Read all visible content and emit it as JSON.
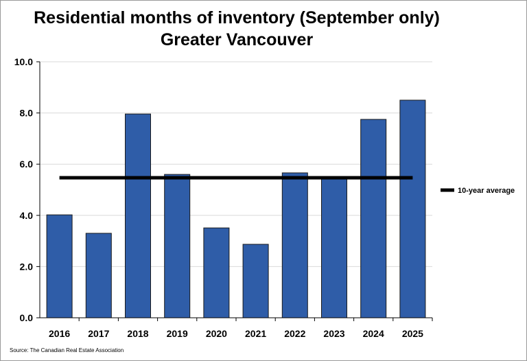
{
  "chart_data": {
    "type": "bar",
    "title": "Residential months of inventory (September only)",
    "subtitle": "Greater Vancouver",
    "categories": [
      "2016",
      "2017",
      "2018",
      "2019",
      "2020",
      "2021",
      "2022",
      "2023",
      "2024",
      "2025"
    ],
    "values": [
      4.02,
      3.3,
      7.96,
      5.6,
      3.51,
      2.87,
      5.66,
      5.45,
      7.75,
      8.5
    ],
    "reference_line": {
      "name": "10-year average",
      "value": 5.47,
      "color": "#000000"
    },
    "ylim": [
      0,
      10
    ],
    "yticks": [
      "0.0",
      "2.0",
      "4.0",
      "6.0",
      "8.0",
      "10.0"
    ],
    "grid": true,
    "legend_placement": "right",
    "bar_color": "#2F5DA8",
    "source": "Source: The Canadian Real Estate Association"
  }
}
